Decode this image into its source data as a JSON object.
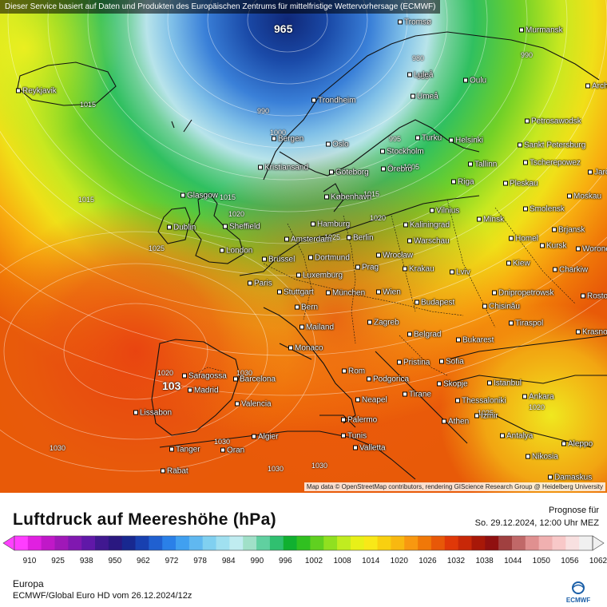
{
  "disclaimer": "Dieser Service basiert auf Daten und Produkten des Europäischen Zentrums für mittelfristige Wettervorhersage (ECMWF)",
  "attribution": "Map data © OpenStreetMap contributors, rendering GIScience Research Group @ Heidelberg University",
  "title": "Luftdruck auf Meereshöhe (hPa)",
  "forecast_label": "Prognose für",
  "forecast_date": "So. 29.12.2024, 12:00 Uhr MEZ",
  "region": "Europa",
  "model": "ECMWF/Global Euro HD vom  26.12.2024/12z",
  "logo_text": "ECMWF",
  "colors": {
    "low_min": "#ff40ff",
    "high_max": "#f0f0f0",
    "scale": [
      "#ff3dff",
      "#e020e0",
      "#c018c8",
      "#a018b8",
      "#8018b0",
      "#6018a8",
      "#401890",
      "#2a1880",
      "#182890",
      "#1840b0",
      "#2060d0",
      "#2a80e8",
      "#40a0f0",
      "#60b8f0",
      "#80d0f0",
      "#a0e0f0",
      "#c0ecf0",
      "#a0e0c8",
      "#60d0a0",
      "#30c070",
      "#10b030",
      "#30c020",
      "#60d020",
      "#90e020",
      "#c0ec20",
      "#e8f018",
      "#f8e818",
      "#f8d010",
      "#f8b810",
      "#f89810",
      "#f07808",
      "#e85808",
      "#e03808",
      "#c82808",
      "#a81808",
      "#901010",
      "#a04040",
      "#c06868",
      "#e09090",
      "#f0b0b0",
      "#f8c8c8",
      "#f8e0e0",
      "#f0f0f0"
    ]
  },
  "scale_ticks": [
    "910",
    "925",
    "938",
    "950",
    "962",
    "972",
    "978",
    "984",
    "990",
    "996",
    "1002",
    "1008",
    "1014",
    "1020",
    "1026",
    "1032",
    "1038",
    "1044",
    "1050",
    "1056",
    "1062"
  ],
  "isobar_labels": [
    {
      "text": "965",
      "big": true
    },
    {
      "text": "1015"
    },
    {
      "text": "1015"
    },
    {
      "text": "1015"
    },
    {
      "text": "1015"
    },
    {
      "text": "1020"
    },
    {
      "text": "1020"
    },
    {
      "text": "990"
    },
    {
      "text": "985"
    },
    {
      "text": "980"
    },
    {
      "text": "990"
    },
    {
      "text": "995"
    },
    {
      "text": "1000"
    },
    {
      "text": "1005"
    },
    {
      "text": "1030"
    },
    {
      "text": "1030"
    },
    {
      "text": "1030"
    },
    {
      "text": "1030"
    },
    {
      "text": "1025"
    },
    {
      "text": "1025"
    },
    {
      "text": "1020"
    },
    {
      "text": "1020"
    },
    {
      "text": "103",
      "big": true
    },
    {
      "text": "1030"
    },
    {
      "text": "1025"
    }
  ],
  "cities": [
    "Reykjavik",
    "Tromsø",
    "Murmansk",
    "Luleå",
    "Oulu",
    "Arch",
    "Trondheim",
    "Umeå",
    "Bergen",
    "Oslo",
    "Stockholm",
    "Turku",
    "Helsinki",
    "Petrosawodsk",
    "Sankt Petersburg",
    "Kristiansand",
    "Göteborg",
    "Örebro",
    "Tallinn",
    "Tscherepowez",
    "Jaros",
    "Glasgow",
    "København",
    "Riga",
    "Pleskau",
    "Moskau",
    "Hamburg",
    "Vilnius",
    "Smolensk",
    "Kaliningrad",
    "Minsk",
    "Brjansk",
    "Dublin",
    "Sheffield",
    "Amsterdam",
    "Berlin",
    "Warschau",
    "Homel",
    "Kursk",
    "London",
    "Brüssel",
    "Dortmund",
    "Wrocław",
    "Worone",
    "Kiew",
    "Charkiw",
    "Prag",
    "Krakau",
    "Paris",
    "Luxemburg",
    "Lviv",
    "Stuttgart",
    "München",
    "Wien",
    "Budapest",
    "Dnipropetrowsk",
    "Bern",
    "Chisinău",
    "Rosto",
    "Mailand",
    "Zagreb",
    "Tiraspol",
    "Krasno",
    "Monaco",
    "Belgrad",
    "Bukarest",
    "Pristina",
    "Sofia",
    "Rom",
    "Saragossa",
    "Madrid",
    "Barcelona",
    "Podgorica",
    "Skopje",
    "Istanbul",
    "Tirane",
    "Ankara",
    "Neapel",
    "Thessaloniki",
    "Lissabon",
    "Valencia",
    "Izmir",
    "Palermo",
    "Athen",
    "Algier",
    "Tunis",
    "Antalya",
    "Aleppo",
    "Valletta",
    "Nikosia",
    "Tanger",
    "Oran",
    "Rabat",
    "Damaskus"
  ]
}
